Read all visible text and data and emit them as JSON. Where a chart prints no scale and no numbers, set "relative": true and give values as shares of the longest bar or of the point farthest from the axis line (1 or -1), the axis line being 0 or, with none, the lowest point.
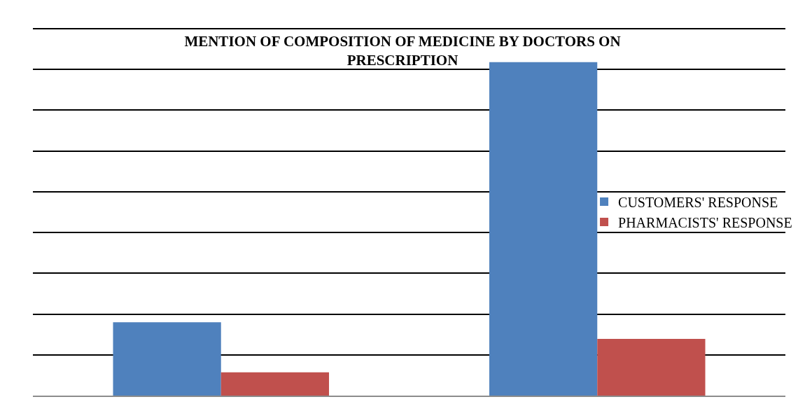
{
  "chart_data": {
    "type": "bar",
    "title": "MENTION OF COMPOSITION OF MEDICINE BY DOCTORS ON PRESCRIPTION",
    "categories": [
      null,
      null
    ],
    "series": [
      {
        "name": "CUSTOMERS' RESPONSE",
        "color": "#4f81bd",
        "values": [
          0.22,
          1
        ]
      },
      {
        "name": "PHARMACISTS' RESPONSE",
        "color": "#c0504d",
        "values": [
          0.07,
          0.17
        ]
      }
    ],
    "relative": true,
    "grid": true,
    "legend": "right"
  }
}
